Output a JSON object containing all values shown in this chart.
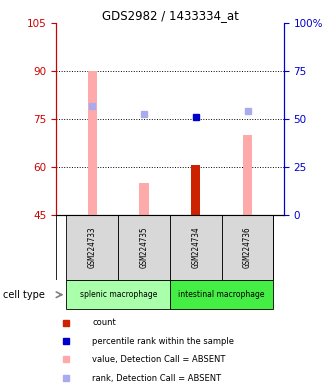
{
  "title": "GDS2982 / 1433334_at",
  "samples": [
    "GSM224733",
    "GSM224735",
    "GSM224734",
    "GSM224736"
  ],
  "ylim_left": [
    45,
    105
  ],
  "yticks_left": [
    45,
    60,
    75,
    90,
    105
  ],
  "yticks_right": [
    0,
    25,
    50,
    75,
    100
  ],
  "ylabel_left_color": "#cc0000",
  "ylabel_right_color": "#0000cc",
  "bar_bottom": 45,
  "bars_value": [
    90.0,
    55.0,
    60.5,
    70.0
  ],
  "bars_value_colors": [
    "#ffaaaa",
    "#ffaaaa",
    "#cc2200",
    "#ffaaaa"
  ],
  "dots_rank": [
    79.0,
    76.5,
    75.5,
    77.5
  ],
  "dots_rank_colors": [
    "#aaaaee",
    "#aaaaee",
    "#0000cc",
    "#aaaaee"
  ],
  "dotted_yticks": [
    60,
    75,
    90
  ],
  "bar_width": 0.18,
  "group_label": "cell type",
  "splenic_color": "#aaffaa",
  "intestinal_color": "#44ee44",
  "legend_items": [
    {
      "color": "#cc2200",
      "label": "count"
    },
    {
      "color": "#0000cc",
      "label": "percentile rank within the sample"
    },
    {
      "color": "#ffaaaa",
      "label": "value, Detection Call = ABSENT"
    },
    {
      "color": "#aaaaee",
      "label": "rank, Detection Call = ABSENT"
    }
  ],
  "fig_width": 3.3,
  "fig_height": 3.84,
  "dpi": 100
}
